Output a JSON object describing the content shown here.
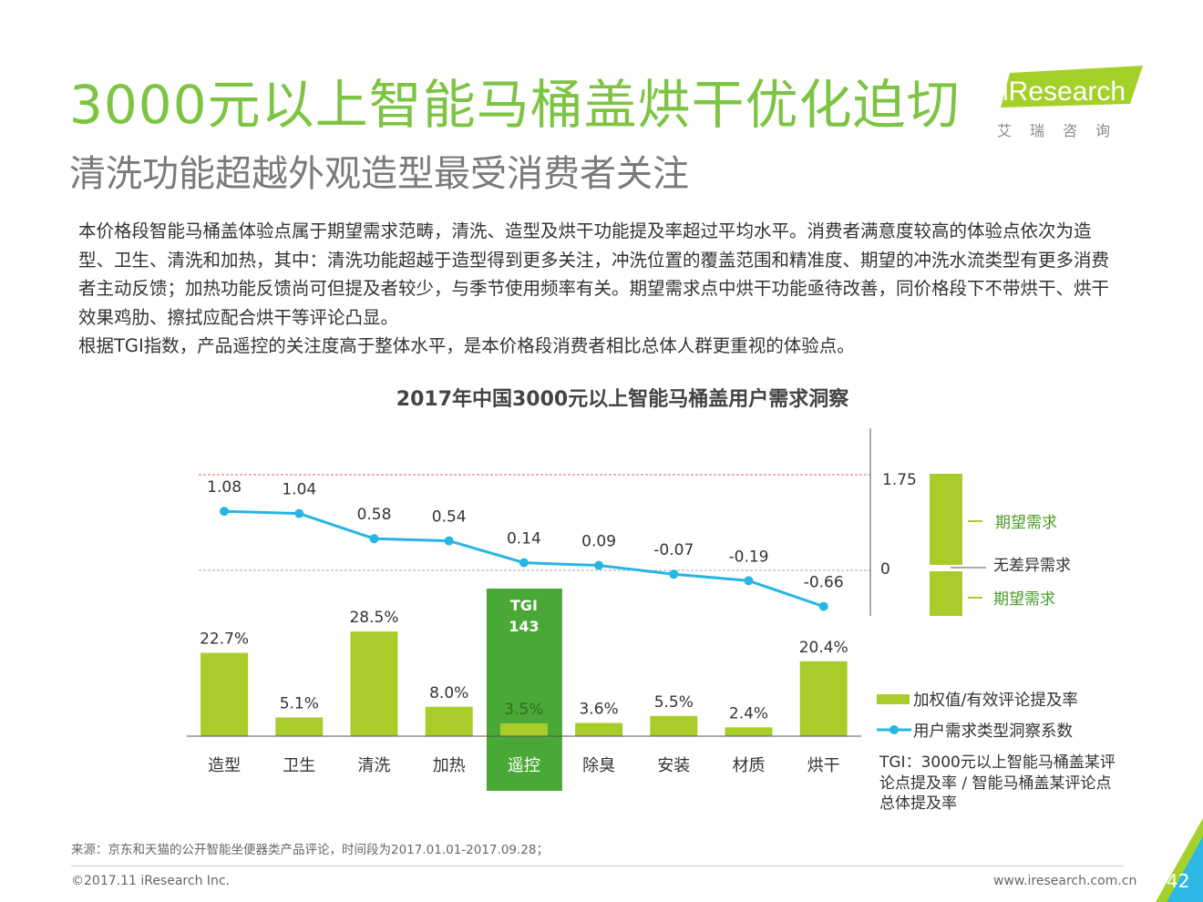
{
  "header": {
    "title": "3000元以上智能马桶盖烘干优化迫切",
    "subtitle": "清洗功能超越外观造型最受消费者关注",
    "logo_text": "iResearch",
    "logo_cn": "艾瑞咨询"
  },
  "description": {
    "para1": "本价格段智能马桶盖体验点属于期望需求范畴，清洗、造型及烘干功能提及率超过平均水平。消费者满意度较高的体验点依次为造型、卫生、清洗和加热，其中：清洗功能超越于造型得到更多关注，冲洗位置的覆盖范围和精准度、期望的冲洗水流类型有更多消费者主动反馈；加热功能反馈尚可但提及者较少，与季节使用频率有关。期望需求点中烘干功能亟待改善，同价格段下不带烘干、烘干效果鸡肋、擦拭应配合烘干等评论凸显。",
    "para2": "根据TGI指数，产品遥控的关注度高于整体水平，是本价格段消费者相比总体人群更重视的体验点。"
  },
  "chart_data": {
    "type": "bar+line",
    "title": "2017年中国3000元以上智能马桶盖用户需求洞察",
    "categories": [
      "造型",
      "卫生",
      "清洗",
      "加热",
      "遥控",
      "除臭",
      "安装",
      "材质",
      "烘干"
    ],
    "series": [
      {
        "name": "加权值/有效评论提及率",
        "type": "bar",
        "values": [
          22.7,
          5.1,
          28.5,
          8.0,
          3.5,
          3.6,
          5.5,
          2.4,
          20.4
        ],
        "labels": [
          "22.7%",
          "5.1%",
          "28.5%",
          "8.0%",
          "3.5%",
          "3.6%",
          "5.5%",
          "2.4%",
          "20.4%"
        ]
      },
      {
        "name": "用户需求类型洞察系数",
        "type": "line",
        "values": [
          1.08,
          1.04,
          0.58,
          0.54,
          0.14,
          0.09,
          -0.07,
          -0.19,
          -0.66
        ],
        "labels": [
          "1.08",
          "1.04",
          "0.58",
          "0.54",
          "0.14",
          "0.09",
          "-0.07",
          "-0.19",
          "-0.66"
        ]
      }
    ],
    "highlight": {
      "category": "遥控",
      "label": "TGI",
      "value": "143"
    },
    "scale": {
      "top_label": "1.75",
      "zero_label": "0",
      "top_value": 1.75,
      "zero_value": 0
    },
    "zones": [
      "期望需求",
      "无差异需求",
      "期望需求"
    ],
    "colors": {
      "bar": "#a8cd2a",
      "highlight": "#4aa936",
      "line": "#27b6e3",
      "reference": "#e06060",
      "zero": "#aaaaaa"
    }
  },
  "note": "TGI：3000元以上智能马桶盖某评论点提及率 / 智能马桶盖某评论点总体提及率",
  "footer": {
    "source": "来源：京东和天猫的公开智能坐便器类产品评论，时间段为2017.01.01-2017.09.28；",
    "copyright": "©2017.11 iResearch Inc.",
    "url": "www.iresearch.com.cn",
    "page": "42"
  }
}
